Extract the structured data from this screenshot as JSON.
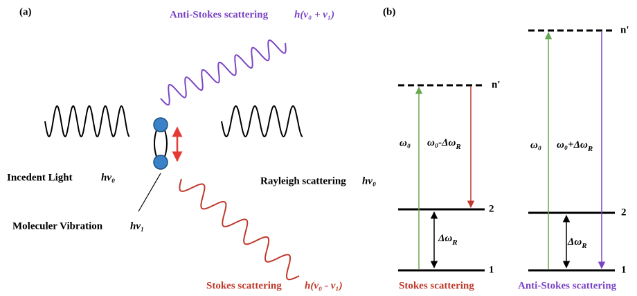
{
  "panel_a": {
    "label": "(a)",
    "anti_stokes": {
      "name": "Anti-Stokes scattering",
      "formula": "h(ν₀ + ν₁)"
    },
    "incident": {
      "name": "Incedent Light",
      "formula": "hν₀"
    },
    "rayleigh": {
      "name": "Rayleigh scattering",
      "formula": "hν₀"
    },
    "vibration": {
      "name": "Moleculer Vibration",
      "formula": "hν₁"
    },
    "stokes": {
      "name": "Stokes scattering",
      "formula": "h(ν₀ - ν₁)"
    }
  },
  "panel_b": {
    "label": "(b)",
    "diagrams": [
      {
        "virtual_level": "n'",
        "excitation": "ω₀",
        "emission": {
          "text": "ω₀-Δω",
          "sub": "R"
        },
        "shift": {
          "text": "Δω",
          "sub": "R"
        },
        "level_2": "2",
        "level_1": "1",
        "title": "Stokes scattering"
      },
      {
        "virtual_level": "n'",
        "excitation": "ω₀",
        "emission": {
          "text": "ω₀+Δω",
          "sub": "R"
        },
        "shift": {
          "text": "Δω",
          "sub": "R"
        },
        "level_2": "2",
        "level_1": "1",
        "title": "Anti-Stokes scattering"
      }
    ]
  }
}
